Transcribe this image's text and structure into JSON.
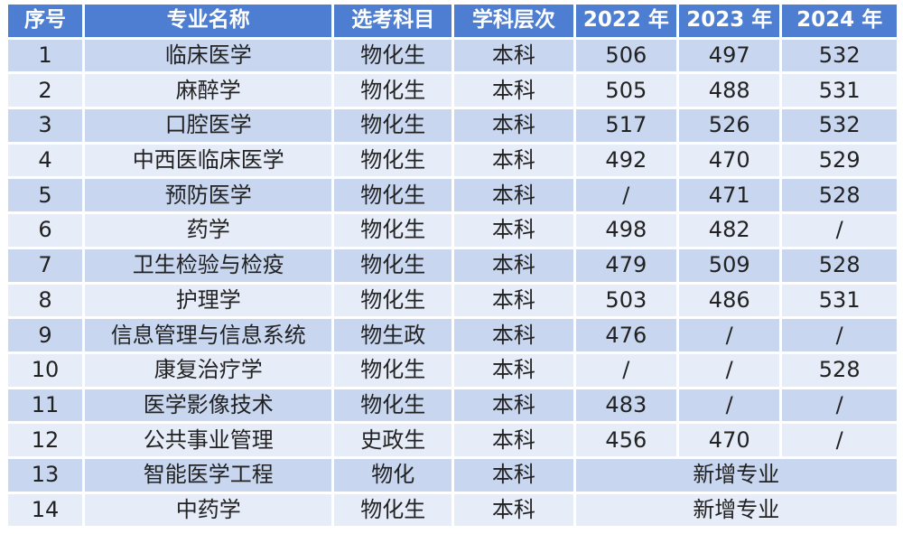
{
  "headers": [
    "序号",
    "专业名称",
    "选考科目",
    "学科层次",
    "2022 年",
    "2023 年",
    "2024 年"
  ],
  "rows": [
    {
      "no": "1",
      "major": "临床医学",
      "subjects": "物化生",
      "level": "本科",
      "y2022": "506",
      "y2023": "497",
      "y2024": "532"
    },
    {
      "no": "2",
      "major": "麻醉学",
      "subjects": "物化生",
      "level": "本科",
      "y2022": "505",
      "y2023": "488",
      "y2024": "531"
    },
    {
      "no": "3",
      "major": "口腔医学",
      "subjects": "物化生",
      "level": "本科",
      "y2022": "517",
      "y2023": "526",
      "y2024": "532"
    },
    {
      "no": "4",
      "major": "中西医临床医学",
      "subjects": "物化生",
      "level": "本科",
      "y2022": "492",
      "y2023": "470",
      "y2024": "529"
    },
    {
      "no": "5",
      "major": "预防医学",
      "subjects": "物化生",
      "level": "本科",
      "y2022": "/",
      "y2023": "471",
      "y2024": "528"
    },
    {
      "no": "6",
      "major": "药学",
      "subjects": "物化生",
      "level": "本科",
      "y2022": "498",
      "y2023": "482",
      "y2024": "/"
    },
    {
      "no": "7",
      "major": "卫生检验与检疫",
      "subjects": "物化生",
      "level": "本科",
      "y2022": "479",
      "y2023": "509",
      "y2024": "528"
    },
    {
      "no": "8",
      "major": "护理学",
      "subjects": "物化生",
      "level": "本科",
      "y2022": "503",
      "y2023": "486",
      "y2024": "531"
    },
    {
      "no": "9",
      "major": "信息管理与信息系统",
      "subjects": "物生政",
      "level": "本科",
      "y2022": "476",
      "y2023": "/",
      "y2024": "/"
    },
    {
      "no": "10",
      "major": "康复治疗学",
      "subjects": "物化生",
      "level": "本科",
      "y2022": "/",
      "y2023": "/",
      "y2024": "528"
    },
    {
      "no": "11",
      "major": "医学影像技术",
      "subjects": "物化生",
      "level": "本科",
      "y2022": "483",
      "y2023": "/",
      "y2024": "/"
    },
    {
      "no": "12",
      "major": "公共事业管理",
      "subjects": "史政生",
      "level": "本科",
      "y2022": "456",
      "y2023": "470",
      "y2024": "/"
    },
    {
      "no": "13",
      "major": "智能医学工程",
      "subjects": "物化",
      "level": "本科",
      "merged": "新增专业"
    },
    {
      "no": "14",
      "major": "中药学",
      "subjects": "物化生",
      "level": "本科",
      "merged": "新增专业"
    }
  ],
  "colors": {
    "header_bg": "#4d7ed2",
    "row_odd": "#c8d6f0",
    "row_even": "#e6ecf8"
  }
}
